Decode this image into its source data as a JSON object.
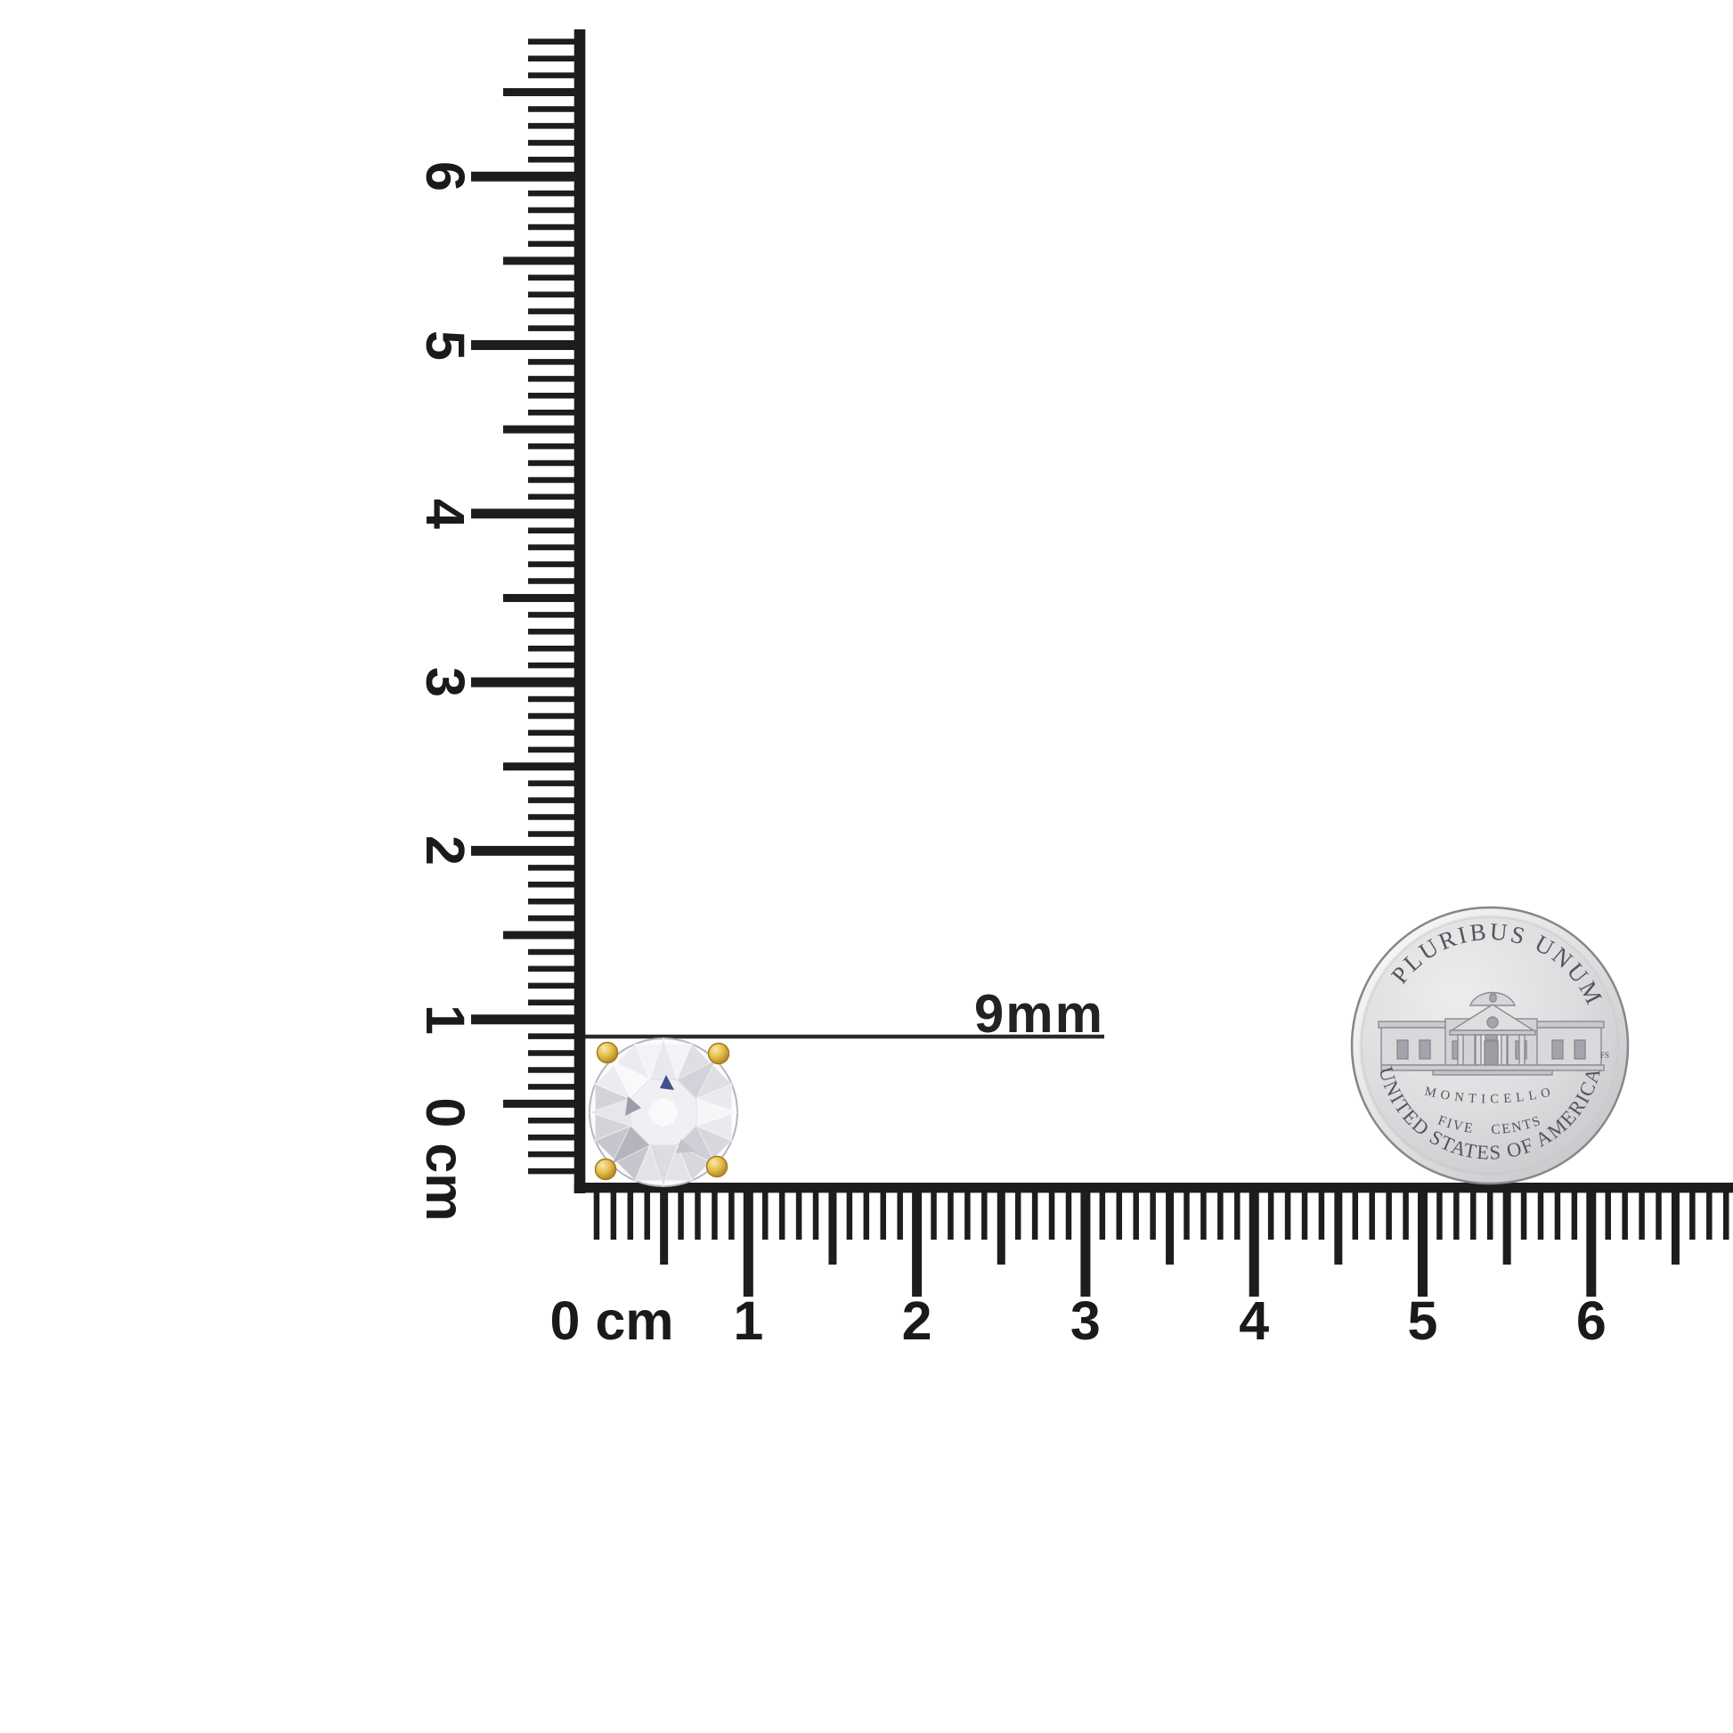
{
  "photo": {
    "description": "Round diamond stud earring with yellow gold prongs shown to scale beside centimeter rulers and a United States nickel",
    "background_color": "#ffffff"
  },
  "measurement_label": {
    "text": "9mm"
  },
  "rulers": {
    "unit": "cm",
    "vertical": {
      "labels": [
        "0",
        "1",
        "2",
        "3",
        "4",
        "5",
        "6"
      ]
    },
    "horizontal": {
      "labels": [
        "0",
        "1",
        "2",
        "3",
        "4",
        "5",
        "6"
      ]
    }
  },
  "earring": {
    "stone": "round-brilliant-diamond",
    "stone_color": "#f2f2f6",
    "accent_facet_color": "#41538a",
    "prong_metal_color": "#e0b945"
  },
  "coin": {
    "type": "us-nickel-reverse",
    "top_text": "E PLURIBUS UNUM",
    "building_label": "MONTICELLO",
    "denomination_text": "FIVE CENTS",
    "bottom_text": "UNITED STATES OF AMERICA",
    "designer_initials": "FS",
    "metal_color": "#d7d7d9"
  }
}
